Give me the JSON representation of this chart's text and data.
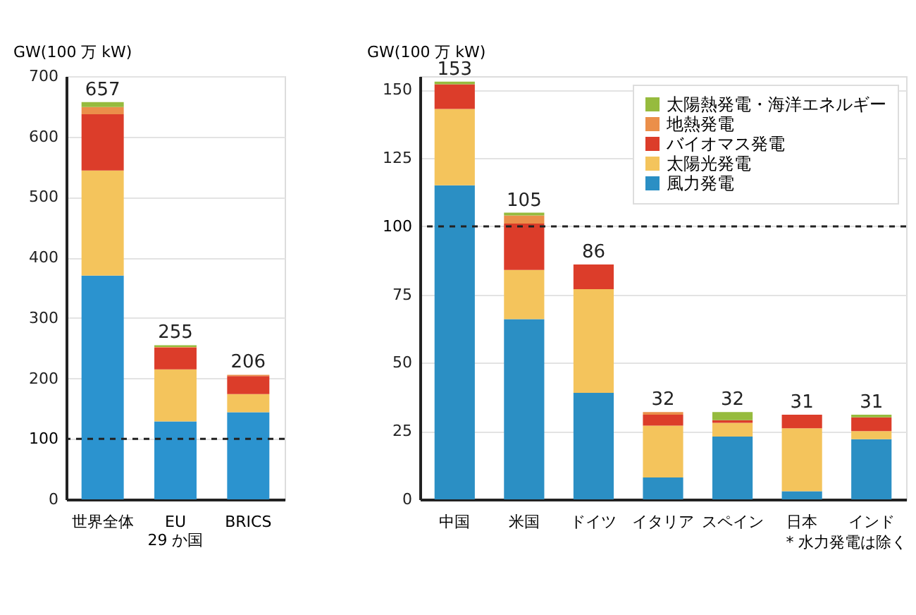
{
  "chart_data": [
    {
      "type": "bar",
      "stacked": true,
      "ylabel": "GW(100 万 kW)",
      "categories": [
        "世界全体",
        "EU\n29 か国",
        "BRICS"
      ],
      "ylim": [
        0,
        700
      ],
      "yticks": [
        0,
        100,
        200,
        300,
        400,
        500,
        600,
        700
      ],
      "grid": "y",
      "legend": false,
      "series": [
        {
          "color": "#2b93cf",
          "values": [
            370,
            129,
            144
          ]
        },
        {
          "color": "#f4c45c",
          "values": [
            174,
            86,
            30
          ]
        },
        {
          "color": "#dc3d2a",
          "values": [
            93,
            36,
            30
          ]
        },
        {
          "color": "#eb8f4a",
          "values": [
            12,
            1,
            2
          ]
        },
        {
          "color": "#96bb3e",
          "values": [
            8,
            3,
            0
          ]
        }
      ],
      "totals": [
        "657",
        "255",
        "206"
      ],
      "ref_lines": [
        {
          "axis": "y",
          "value": 100,
          "line_style": "dashed",
          "color": "#222222"
        }
      ]
    },
    {
      "type": "bar",
      "stacked": true,
      "ylabel": "GW(100 万 kW)",
      "categories": [
        "中国",
        "米国",
        "ドイツ",
        "イタリア",
        "スペイン",
        "日本",
        "インド"
      ],
      "ylim": [
        0,
        155
      ],
      "yticks": [
        0,
        25,
        50,
        75,
        100,
        125,
        150
      ],
      "grid": "y",
      "legend": "top right",
      "series": [
        {
          "name": "風力発電",
          "color": "#2b8fc4",
          "values": [
            115,
            66,
            39,
            8,
            23,
            3,
            22
          ]
        },
        {
          "name": "太陽光発電",
          "color": "#f4c45c",
          "values": [
            28,
            18,
            38,
            19,
            5,
            23,
            3
          ]
        },
        {
          "name": "バイオマス発電",
          "color": "#dc3d2a",
          "values": [
            9,
            17,
            9,
            4,
            1,
            5,
            5
          ]
        },
        {
          "name": "地熱発電",
          "color": "#eb8f4a",
          "values": [
            0,
            3,
            0,
            1,
            0,
            0,
            0
          ]
        },
        {
          "name": "太陽熱発電・海洋エネルギー",
          "color": "#96bb3e",
          "values": [
            1,
            1,
            0,
            0,
            3,
            0,
            1
          ]
        }
      ],
      "totals": [
        "153",
        "105",
        "86",
        "32",
        "32",
        "31",
        "31"
      ],
      "ref_lines": [
        {
          "axis": "y",
          "value": 100,
          "line_style": "dashed",
          "color": "#222222"
        }
      ],
      "annotations": [
        "* 水力発電は除く"
      ]
    }
  ]
}
